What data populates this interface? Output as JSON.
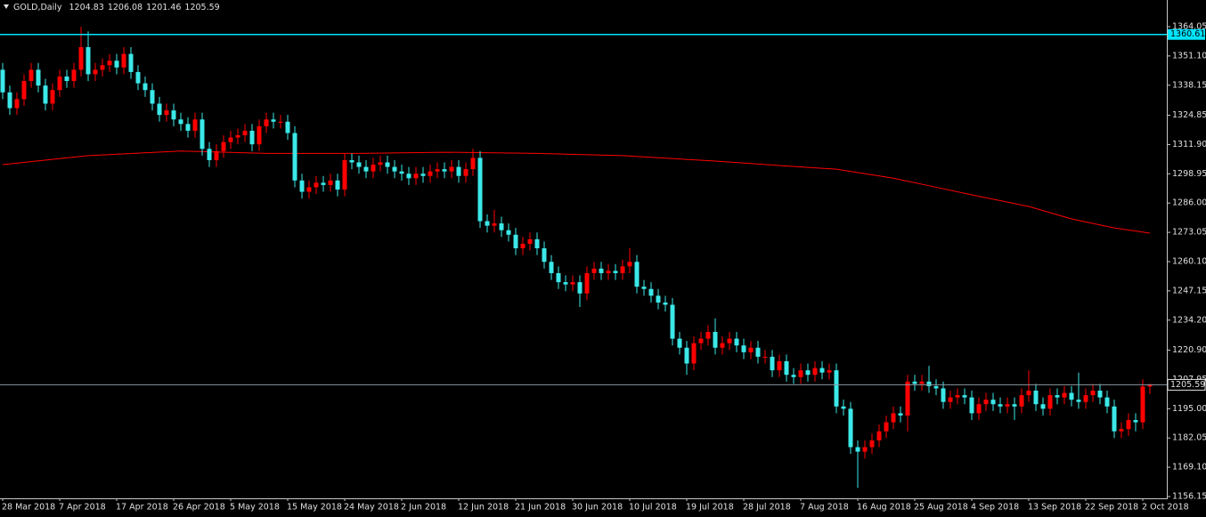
{
  "chart_data": {
    "type": "candlestick",
    "title": "GOLD,Daily",
    "up_color": "#ff0000",
    "down_color": "#3ce8e8",
    "background": "#000000",
    "categories": [
      "28 Mar 2018",
      null,
      null,
      null,
      null,
      null,
      null,
      null,
      "7 Apr 2018",
      null,
      null,
      null,
      null,
      null,
      null,
      null,
      "17 Apr 2018",
      null,
      null,
      null,
      null,
      null,
      null,
      null,
      "26 Apr 2018",
      null,
      null,
      null,
      null,
      null,
      null,
      null,
      "5 May 2018",
      null,
      null,
      null,
      null,
      null,
      null,
      null,
      "15 May 2018",
      null,
      null,
      null,
      null,
      null,
      null,
      null,
      "24 May 2018",
      null,
      null,
      null,
      null,
      null,
      null,
      null,
      "2 Jun 2018",
      null,
      null,
      null,
      null,
      null,
      null,
      null,
      "12 Jun 2018",
      null,
      null,
      null,
      null,
      null,
      null,
      null,
      "21 Jun 2018",
      null,
      null,
      null,
      null,
      null,
      null,
      null,
      "30 Jun 2018",
      null,
      null,
      null,
      null,
      null,
      null,
      null,
      "10 Jul 2018",
      null,
      null,
      null,
      null,
      null,
      null,
      null,
      "19 Jul 2018",
      null,
      null,
      null,
      null,
      null,
      null,
      null,
      "28 Jul 2018",
      null,
      null,
      null,
      null,
      null,
      null,
      null,
      "7 Aug 2018",
      null,
      null,
      null,
      null,
      null,
      null,
      null,
      "16 Aug 2018",
      null,
      null,
      null,
      null,
      null,
      null,
      null,
      "25 Aug 2018",
      null,
      null,
      null,
      null,
      null,
      null,
      null,
      "4 Sep 2018",
      null,
      null,
      null,
      null,
      null,
      null,
      null,
      "13 Sep 2018",
      null,
      null,
      null,
      null,
      null,
      null,
      null,
      "22 Sep 2018",
      null,
      null,
      null,
      null,
      null,
      null,
      null,
      "2 Oct 2018",
      null
    ],
    "open": [
      1345,
      1335,
      1328,
      1332,
      1340,
      1345,
      1338,
      1330,
      1336,
      1342,
      1340,
      1345,
      1355,
      1343,
      1345,
      1347,
      1349,
      1346,
      1352,
      1344,
      1339,
      1336,
      1330,
      1325,
      1327,
      1323,
      1321,
      1318,
      1323,
      1310,
      1305,
      1309,
      1313,
      1315,
      1316,
      1318,
      1312,
      1320,
      1323,
      1322,
      1322,
      1317,
      1296,
      1291,
      1293,
      1295,
      1294,
      1296,
      1292,
      1305,
      1304,
      1302,
      1300,
      1303,
      1304,
      1302,
      1300,
      1299,
      1297,
      1299,
      1298,
      1300,
      1301,
      1300,
      1302,
      1298,
      1301,
      1306,
      1278,
      1276,
      1277,
      1274,
      1272,
      1266,
      1268,
      1270,
      1266,
      1260,
      1255,
      1251,
      1250,
      1251,
      1246,
      1255,
      1257,
      1255,
      1256,
      1255,
      1258,
      1260,
      1249,
      1248,
      1245,
      1242,
      1241,
      1226,
      1222,
      1215,
      1224,
      1226,
      1229,
      1222,
      1224,
      1226,
      1223,
      1220,
      1222,
      1218,
      1218,
      1212,
      1216,
      1210,
      1209,
      1212,
      1210,
      1213,
      1211,
      1212,
      1196,
      1195,
      1178,
      1176,
      1178,
      1181,
      1185,
      1189,
      1193,
      1192,
      1207,
      1206,
      1207,
      1205,
      1204,
      1198,
      1200,
      1201,
      1200,
      1193,
      1197,
      1199,
      1197,
      1196,
      1197,
      1196,
      1201,
      1203,
      1197,
      1195,
      1201,
      1200,
      1202,
      1199,
      1198,
      1201,
      1203,
      1200,
      1196,
      1185,
      1186,
      1190,
      1189,
      1204.83
    ],
    "high": [
      1348,
      1338,
      1335,
      1343,
      1348,
      1348,
      1341,
      1339,
      1345,
      1345,
      1348,
      1364,
      1362,
      1348,
      1350,
      1352,
      1352,
      1355,
      1355,
      1347,
      1342,
      1339,
      1333,
      1330,
      1330,
      1326,
      1324,
      1326,
      1326,
      1313,
      1312,
      1316,
      1318,
      1319,
      1321,
      1321,
      1323,
      1326,
      1326,
      1325,
      1325,
      1320,
      1299,
      1296,
      1298,
      1298,
      1299,
      1299,
      1308,
      1308,
      1307,
      1305,
      1306,
      1307,
      1307,
      1305,
      1303,
      1302,
      1302,
      1302,
      1303,
      1304,
      1304,
      1305,
      1305,
      1304,
      1310,
      1309,
      1281,
      1283,
      1280,
      1277,
      1275,
      1271,
      1273,
      1273,
      1269,
      1263,
      1258,
      1254,
      1254,
      1254,
      1258,
      1260,
      1260,
      1259,
      1259,
      1261,
      1266,
      1263,
      1252,
      1251,
      1248,
      1245,
      1244,
      1229,
      1225,
      1227,
      1229,
      1232,
      1235,
      1227,
      1229,
      1229,
      1226,
      1225,
      1225,
      1221,
      1221,
      1219,
      1219,
      1213,
      1215,
      1215,
      1216,
      1216,
      1215,
      1215,
      1199,
      1198,
      1181,
      1181,
      1184,
      1188,
      1192,
      1196,
      1196,
      1210,
      1210,
      1210,
      1214,
      1208,
      1207,
      1203,
      1204,
      1204,
      1203,
      1200,
      1202,
      1202,
      1200,
      1200,
      1200,
      1204,
      1212,
      1206,
      1200,
      1204,
      1204,
      1205,
      1205,
      1211,
      1204,
      1206,
      1206,
      1203,
      1199,
      1189,
      1193,
      1193,
      1208,
      1206.08
    ],
    "low": [
      1332,
      1325,
      1325,
      1329,
      1337,
      1335,
      1327,
      1327,
      1333,
      1337,
      1337,
      1342,
      1340,
      1340,
      1342,
      1344,
      1343,
      1343,
      1341,
      1336,
      1333,
      1327,
      1322,
      1322,
      1320,
      1318,
      1315,
      1315,
      1307,
      1302,
      1302,
      1306,
      1310,
      1312,
      1313,
      1309,
      1309,
      1317,
      1319,
      1319,
      1314,
      1293,
      1288,
      1288,
      1290,
      1291,
      1291,
      1289,
      1289,
      1301,
      1299,
      1297,
      1297,
      1300,
      1299,
      1297,
      1296,
      1294,
      1294,
      1295,
      1295,
      1297,
      1297,
      1297,
      1295,
      1295,
      1298,
      1275,
      1273,
      1273,
      1271,
      1269,
      1263,
      1263,
      1265,
      1263,
      1257,
      1252,
      1248,
      1247,
      1247,
      1240,
      1243,
      1252,
      1252,
      1252,
      1252,
      1252,
      1255,
      1246,
      1245,
      1242,
      1239,
      1238,
      1223,
      1219,
      1210,
      1212,
      1221,
      1223,
      1219,
      1219,
      1221,
      1220,
      1217,
      1217,
      1215,
      1215,
      1209,
      1209,
      1207,
      1206,
      1206,
      1207,
      1207,
      1208,
      1208,
      1193,
      1192,
      1175,
      1160,
      1173,
      1175,
      1178,
      1182,
      1186,
      1189,
      1185,
      1203,
      1203,
      1202,
      1201,
      1195,
      1195,
      1197,
      1197,
      1190,
      1190,
      1194,
      1194,
      1193,
      1193,
      1190,
      1193,
      1198,
      1194,
      1192,
      1192,
      1197,
      1197,
      1196,
      1195,
      1195,
      1198,
      1197,
      1193,
      1182,
      1182,
      1183,
      1185,
      1186,
      1201.46
    ],
    "close": [
      1335,
      1328,
      1332,
      1340,
      1345,
      1338,
      1330,
      1336,
      1342,
      1340,
      1345,
      1355,
      1343,
      1345,
      1347,
      1349,
      1346,
      1352,
      1344,
      1339,
      1336,
      1330,
      1325,
      1327,
      1323,
      1321,
      1318,
      1323,
      1310,
      1305,
      1309,
      1313,
      1315,
      1316,
      1318,
      1312,
      1320,
      1323,
      1322,
      1322,
      1317,
      1296,
      1291,
      1293,
      1295,
      1294,
      1296,
      1292,
      1305,
      1304,
      1302,
      1300,
      1303,
      1304,
      1302,
      1300,
      1299,
      1297,
      1299,
      1298,
      1300,
      1301,
      1300,
      1302,
      1298,
      1301,
      1306,
      1278,
      1276,
      1277,
      1274,
      1272,
      1266,
      1268,
      1270,
      1266,
      1260,
      1255,
      1251,
      1250,
      1251,
      1246,
      1255,
      1257,
      1255,
      1256,
      1255,
      1258,
      1260,
      1249,
      1248,
      1245,
      1242,
      1241,
      1226,
      1222,
      1215,
      1224,
      1226,
      1229,
      1222,
      1224,
      1226,
      1223,
      1220,
      1222,
      1218,
      1218,
      1212,
      1216,
      1210,
      1209,
      1212,
      1210,
      1213,
      1211,
      1212,
      1196,
      1195,
      1178,
      1176,
      1178,
      1181,
      1185,
      1189,
      1193,
      1192,
      1207,
      1206,
      1207,
      1205,
      1204,
      1198,
      1200,
      1201,
      1200,
      1193,
      1197,
      1199,
      1197,
      1196,
      1197,
      1196,
      1201,
      1203,
      1197,
      1195,
      1201,
      1200,
      1202,
      1199,
      1198,
      1201,
      1203,
      1200,
      1196,
      1185,
      1186,
      1190,
      1189,
      1204.83,
      1205.59
    ],
    "ma": {
      "color": "#ff0000",
      "x": [
        0,
        12,
        25,
        37,
        50,
        62,
        75,
        87,
        100,
        112,
        117,
        125,
        131,
        137,
        144,
        150,
        156,
        161
      ],
      "values": [
        1303,
        1307,
        1309,
        1308,
        1308,
        1308.5,
        1308,
        1307,
        1304.6,
        1302,
        1301,
        1297,
        1293,
        1289,
        1284.5,
        1279,
        1275,
        1272.7
      ]
    },
    "level": {
      "value": 1360.61,
      "color": "#00e5ff"
    },
    "bid_color": "#8c96a0",
    "ylim": [
      1155.36,
      1375.86
    ],
    "yticks": [
      1364.05,
      {
        "value": 1351.1,
        "label": "1351.10"
      },
      1338.15,
      1324.85,
      {
        "value": 1311.9,
        "label": "1311.90"
      },
      1298.95,
      {
        "value": 1286,
        "label": "1286.00"
      },
      1273.05,
      {
        "value": 1260.1,
        "label": "1260.10"
      },
      1247.15,
      {
        "value": 1234.2,
        "label": "1234.20"
      },
      {
        "value": 1220.9,
        "label": "1220.90"
      },
      1207.95,
      {
        "value": 1195,
        "label": "1195.00"
      },
      1182.05,
      {
        "value": 1169.1,
        "label": "1169.10"
      },
      1156.15
    ]
  }
}
